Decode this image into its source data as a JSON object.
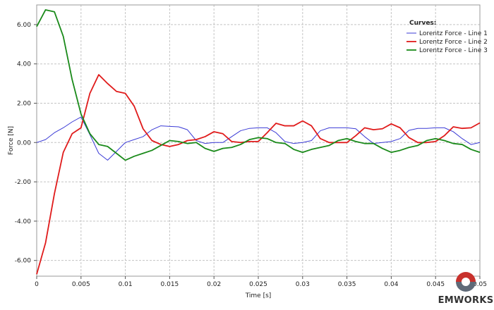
{
  "chart_data": {
    "type": "line",
    "xlabel": "Time [s]",
    "ylabel": "Force [N]",
    "xlim": [
      0,
      0.05
    ],
    "ylim": [
      -6.8,
      7.0
    ],
    "xticks": [
      0,
      0.005,
      0.01,
      0.015,
      0.02,
      0.025,
      0.03,
      0.035,
      0.04,
      0.045,
      0.05
    ],
    "xtick_labels": [
      "0",
      "0.005",
      "0.01",
      "0.015",
      "0.02",
      "0.025",
      "0.03",
      "0.035",
      "0.04",
      "0.045",
      "0.05"
    ],
    "yticks": [
      -6,
      -4,
      -2,
      0,
      2,
      4,
      6
    ],
    "ytick_labels": [
      "-6.00",
      "-4.00",
      "-2.00",
      "0.00",
      "2.00",
      "4.00",
      "6.00"
    ],
    "grid": true,
    "legend_title": "Curves:",
    "legend_position": "top-right",
    "x": [
      0,
      0.001,
      0.002,
      0.003,
      0.004,
      0.005,
      0.006,
      0.007,
      0.008,
      0.009,
      0.01,
      0.011,
      0.012,
      0.013,
      0.014,
      0.015,
      0.016,
      0.017,
      0.018,
      0.019,
      0.02,
      0.021,
      0.022,
      0.023,
      0.024,
      0.025,
      0.026,
      0.027,
      0.028,
      0.029,
      0.03,
      0.031,
      0.032,
      0.033,
      0.034,
      0.035,
      0.036,
      0.037,
      0.038,
      0.039,
      0.04,
      0.041,
      0.042,
      0.043,
      0.044,
      0.045,
      0.046,
      0.047,
      0.048,
      0.049,
      0.05
    ],
    "series": [
      {
        "name": "Lorentz Force - Line 1",
        "color": "#3b3bd6",
        "values": [
          0.0,
          0.15,
          0.5,
          0.75,
          1.05,
          1.3,
          0.4,
          -0.55,
          -0.9,
          -0.45,
          0.0,
          0.15,
          0.3,
          0.65,
          0.85,
          0.82,
          0.8,
          0.65,
          0.1,
          -0.05,
          0.0,
          0.0,
          0.3,
          0.6,
          0.72,
          0.75,
          0.75,
          0.5,
          0.05,
          -0.05,
          0.0,
          0.1,
          0.6,
          0.75,
          0.75,
          0.75,
          0.7,
          0.3,
          -0.05,
          0.0,
          0.05,
          0.2,
          0.62,
          0.72,
          0.72,
          0.75,
          0.75,
          0.55,
          0.2,
          -0.1,
          0.0
        ]
      },
      {
        "name": "Lorentz Force - Line 2",
        "color": "#e01b1b",
        "values": [
          -6.7,
          -5.1,
          -2.6,
          -0.5,
          0.45,
          0.75,
          2.5,
          3.45,
          3.0,
          2.6,
          2.5,
          1.85,
          0.7,
          0.1,
          -0.1,
          -0.2,
          -0.1,
          0.1,
          0.15,
          0.3,
          0.55,
          0.45,
          0.05,
          0.0,
          0.05,
          0.05,
          0.5,
          0.98,
          0.85,
          0.85,
          1.1,
          0.85,
          0.2,
          0.0,
          0.0,
          0.0,
          0.35,
          0.75,
          0.65,
          0.7,
          0.95,
          0.75,
          0.25,
          0.0,
          0.0,
          0.05,
          0.35,
          0.8,
          0.72,
          0.75,
          1.0
        ]
      },
      {
        "name": "Lorentz Force - Line 3",
        "color": "#1a8a1a",
        "values": [
          5.9,
          6.75,
          6.65,
          5.4,
          3.2,
          1.45,
          0.45,
          -0.1,
          -0.2,
          -0.55,
          -0.9,
          -0.7,
          -0.55,
          -0.4,
          -0.15,
          0.1,
          0.05,
          -0.05,
          0.0,
          -0.3,
          -0.45,
          -0.3,
          -0.25,
          -0.1,
          0.15,
          0.25,
          0.2,
          0.0,
          -0.05,
          -0.35,
          -0.5,
          -0.35,
          -0.25,
          -0.15,
          0.1,
          0.2,
          0.05,
          -0.05,
          -0.05,
          -0.3,
          -0.5,
          -0.4,
          -0.25,
          -0.15,
          0.1,
          0.2,
          0.1,
          -0.05,
          -0.1,
          -0.35,
          -0.5
        ]
      }
    ]
  },
  "logo": {
    "text": "EMWORKS",
    "colors": {
      "top": "#c8312c",
      "bottom": "#5f6a78"
    }
  }
}
